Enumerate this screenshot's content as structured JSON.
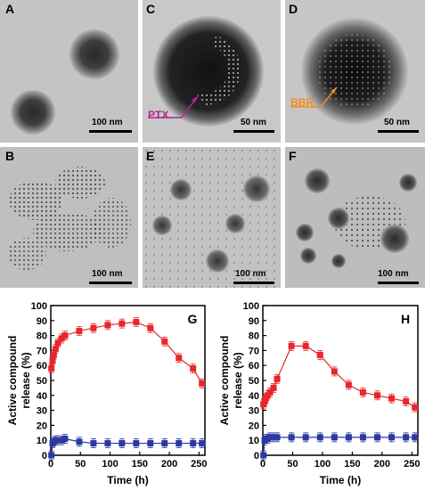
{
  "panels": {
    "a": {
      "label": "A",
      "scale": "100 nm"
    },
    "b": {
      "label": "B",
      "scale": "100 nm"
    },
    "c": {
      "label": "C",
      "scale": "50 nm",
      "annotation": "PTX",
      "annotation_color": "#b5258f"
    },
    "d": {
      "label": "D",
      "scale": "50 nm",
      "annotation": "BBR",
      "annotation_color": "#f08c1e"
    },
    "e": {
      "label": "E",
      "scale": "100 nm"
    },
    "f": {
      "label": "F",
      "scale": "100 nm"
    }
  },
  "chart_data": [
    {
      "panel": "G",
      "type": "line",
      "xlabel": "Time (h)",
      "ylabel": "Active compound release (%)",
      "xlim": [
        0,
        260
      ],
      "ylim": [
        0,
        100
      ],
      "xticks": [
        0,
        50,
        100,
        150,
        200,
        250
      ],
      "yticks": [
        0,
        10,
        20,
        30,
        40,
        50,
        60,
        70,
        80,
        90,
        100
      ],
      "series": [
        {
          "color": "#e8262b",
          "marker": "square",
          "x": [
            1,
            3,
            5,
            8,
            12,
            18,
            24,
            48,
            72,
            96,
            120,
            144,
            168,
            192,
            216,
            240,
            255
          ],
          "y": [
            58,
            63,
            67,
            71,
            75,
            78,
            80,
            83,
            85,
            87,
            88,
            89,
            85,
            76,
            65,
            58,
            48
          ]
        },
        {
          "color": "#2b39a0",
          "marker": "square",
          "x": [
            1,
            3,
            5,
            8,
            12,
            18,
            24,
            48,
            72,
            96,
            120,
            144,
            168,
            192,
            216,
            240,
            255
          ],
          "y": [
            0,
            8,
            9,
            10,
            10,
            10,
            11,
            9,
            8,
            8,
            8,
            8,
            8,
            8,
            8,
            8,
            8
          ]
        }
      ]
    },
    {
      "panel": "H",
      "type": "line",
      "xlabel": "Time (h)",
      "ylabel": "Active compound release (%)",
      "xlim": [
        0,
        260
      ],
      "ylim": [
        0,
        100
      ],
      "xticks": [
        0,
        50,
        100,
        150,
        200,
        250
      ],
      "yticks": [
        0,
        10,
        20,
        30,
        40,
        50,
        60,
        70,
        80,
        90,
        100
      ],
      "series": [
        {
          "color": "#e8262b",
          "marker": "square",
          "x": [
            1,
            3,
            5,
            8,
            12,
            18,
            24,
            48,
            72,
            96,
            120,
            144,
            168,
            192,
            216,
            240,
            255
          ],
          "y": [
            34,
            36,
            38,
            40,
            42,
            45,
            51,
            73,
            73,
            67,
            56,
            47,
            42,
            40,
            38,
            36,
            32
          ]
        },
        {
          "color": "#2b39a0",
          "marker": "square",
          "x": [
            1,
            3,
            5,
            8,
            12,
            18,
            24,
            48,
            72,
            96,
            120,
            144,
            168,
            192,
            216,
            240,
            255
          ],
          "y": [
            0,
            10,
            11,
            11,
            12,
            12,
            12,
            12,
            12,
            12,
            12,
            12,
            12,
            12,
            12,
            12,
            12
          ]
        }
      ]
    }
  ]
}
